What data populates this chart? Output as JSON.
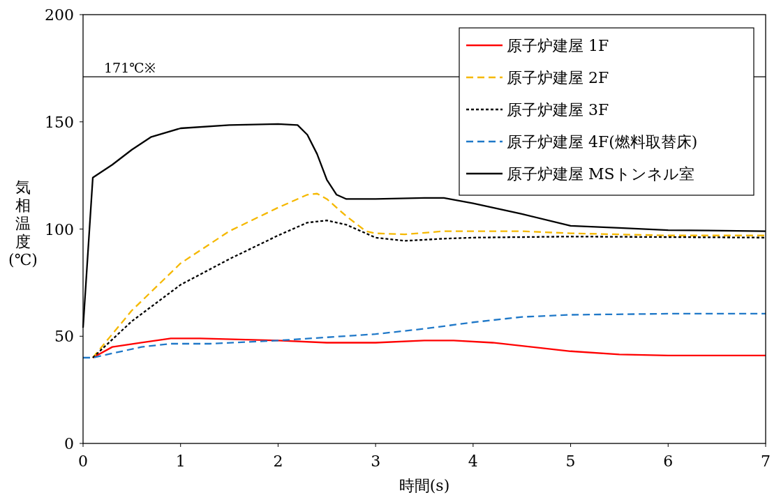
{
  "chart_data": {
    "type": "line",
    "xlabel": "時間(s)",
    "ylabel": "気相温度(℃)",
    "xlim": [
      0,
      7
    ],
    "xticks": [
      0,
      1,
      2,
      3,
      4,
      5,
      6,
      7
    ],
    "ylim": [
      0,
      200
    ],
    "yticks": [
      0,
      50,
      100,
      150,
      200
    ],
    "grid": false,
    "legend": "top right",
    "marker": "none",
    "ref_lines": [
      {
        "axis": "y",
        "value": 171,
        "label": "171℃※",
        "color": "#000000",
        "line_style": "solid"
      }
    ],
    "series": [
      {
        "name": "原子炉建屋 1F",
        "color": "#ff0000",
        "line_style": "solid",
        "x": [
          0.1,
          0.3,
          0.6,
          0.9,
          1.2,
          2,
          2.5,
          3,
          3.5,
          3.8,
          4.2,
          5,
          5.5,
          6,
          7
        ],
        "values": [
          40,
          45,
          47,
          49,
          49,
          48,
          47,
          47,
          48,
          48,
          47,
          43,
          41.5,
          41,
          41
        ]
      },
      {
        "name": "原子炉建屋 2F",
        "color": "#f5b800",
        "line_style": "dashed",
        "x": [
          0.1,
          0.5,
          1,
          1.5,
          2,
          2.3,
          2.4,
          2.5,
          2.7,
          2.9,
          3,
          3.3,
          3.7,
          4,
          4.5,
          5,
          6,
          7
        ],
        "values": [
          40,
          62,
          84,
          99,
          110,
          116,
          116.5,
          114,
          106,
          99,
          98,
          97.5,
          99,
          99,
          99,
          98,
          97,
          97
        ]
      },
      {
        "name": "原子炉建屋 3F",
        "color": "#000000",
        "line_style": "dotted",
        "x": [
          0.1,
          0.5,
          1,
          1.5,
          2,
          2.3,
          2.5,
          2.7,
          3,
          3.3,
          3.7,
          4,
          5,
          7
        ],
        "values": [
          40,
          57,
          74,
          86,
          97,
          103,
          104,
          102,
          96,
          94.5,
          95.5,
          96,
          96.5,
          96
        ]
      },
      {
        "name": "原子炉建屋 4F(燃料取替床)",
        "color": "#1f78c8",
        "line_style": "dashed",
        "x": [
          0,
          0.1,
          0.3,
          0.6,
          0.9,
          1.3,
          2,
          2.5,
          3,
          3.5,
          4,
          4.5,
          5,
          6,
          7
        ],
        "values": [
          40,
          40,
          42,
          45,
          46.5,
          46.5,
          48,
          49.5,
          51,
          53.5,
          56.5,
          59,
          60,
          60.5,
          60.5
        ]
      },
      {
        "name": "原子炉建屋 MSトンネル室",
        "color": "#000000",
        "line_style": "solid",
        "x": [
          0,
          0.1,
          0.3,
          0.5,
          0.7,
          1,
          1.5,
          2,
          2.2,
          2.3,
          2.4,
          2.5,
          2.6,
          2.7,
          3,
          3.5,
          3.7,
          4,
          4.5,
          5,
          5.5,
          6,
          7
        ],
        "values": [
          54,
          124,
          130,
          137,
          143,
          147,
          148.5,
          149,
          148.5,
          144,
          135,
          123,
          116,
          114,
          114,
          114.5,
          114.5,
          112,
          107,
          101.5,
          100.5,
          99.5,
          99
        ]
      }
    ]
  }
}
